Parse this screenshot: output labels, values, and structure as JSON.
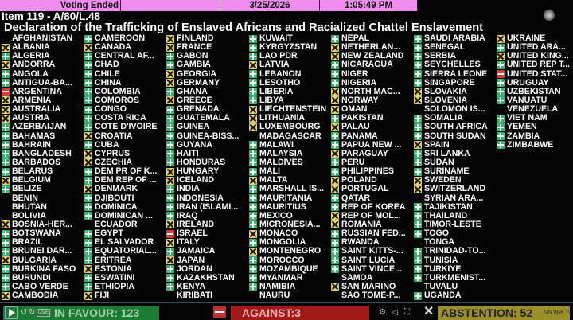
{
  "header": {
    "status": "Voting Ended",
    "blank": "",
    "date": "3/25/2026",
    "time": "1:05:49 PM"
  },
  "item": "Item 119 - A/80/L.48",
  "title": "Declaration of the Trafficking of Enslaved Africans and Racialized Chattel Enslavement",
  "vote_colors": {
    "yes": "#35b56e",
    "abstain": "#e6d25a",
    "no": "#dd3535"
  },
  "vote_icons": {
    "yes": "plus-icon",
    "abstain": "x-icon",
    "no": "minus-icon",
    "": "none"
  },
  "columns": [
    [
      [
        "AFGHANISTAN",
        ""
      ],
      [
        "ALBANIA",
        "abstain"
      ],
      [
        "ALGERIA",
        "yes"
      ],
      [
        "ANDORRA",
        "abstain"
      ],
      [
        "ANGOLA",
        "yes"
      ],
      [
        "ANTIGUA-BA...",
        "yes"
      ],
      [
        "ARGENTINA",
        "no"
      ],
      [
        "ARMENIA",
        "abstain"
      ],
      [
        "AUSTRALIA",
        "abstain"
      ],
      [
        "AUSTRIA",
        "abstain"
      ],
      [
        "AZERBAIJAN",
        "yes"
      ],
      [
        "BAHAMAS",
        "yes"
      ],
      [
        "BAHRAIN",
        "yes"
      ],
      [
        "BANGLADESH",
        "yes"
      ],
      [
        "BARBADOS",
        "yes"
      ],
      [
        "BELARUS",
        "yes"
      ],
      [
        "BELGIUM",
        "abstain"
      ],
      [
        "BELIZE",
        "yes"
      ],
      [
        "BENIN",
        ""
      ],
      [
        "BHUTAN",
        ""
      ],
      [
        "BOLIVIA",
        ""
      ],
      [
        "BOSNIA-HER...",
        "abstain"
      ],
      [
        "BOTSWANA",
        "yes"
      ],
      [
        "BRAZIL",
        "yes"
      ],
      [
        "BRUNEI DAR...",
        "yes"
      ],
      [
        "BULGARIA",
        "abstain"
      ],
      [
        "BURKINA FASO",
        "yes"
      ],
      [
        "BURUNDI",
        "yes"
      ],
      [
        "CABO VERDE",
        "yes"
      ],
      [
        "CAMBODIA",
        "abstain"
      ]
    ],
    [
      [
        "CAMEROON",
        "yes"
      ],
      [
        "CANADA",
        "abstain"
      ],
      [
        "CENTRAL AF...",
        "yes"
      ],
      [
        "CHAD",
        "yes"
      ],
      [
        "CHILE",
        "yes"
      ],
      [
        "CHINA",
        "yes"
      ],
      [
        "COLOMBIA",
        "yes"
      ],
      [
        "COMOROS",
        "yes"
      ],
      [
        "CONGO",
        "yes"
      ],
      [
        "COSTA RICA",
        "yes"
      ],
      [
        "COTE D'IVOIRE",
        "yes"
      ],
      [
        "CROATIA",
        "abstain"
      ],
      [
        "CUBA",
        "yes"
      ],
      [
        "CYPRUS",
        "abstain"
      ],
      [
        "CZECHIA",
        "abstain"
      ],
      [
        "DEM PR OF K...",
        "yes"
      ],
      [
        "DEM REP OF ...",
        "yes"
      ],
      [
        "DENMARK",
        "abstain"
      ],
      [
        "DJIBOUTI",
        "yes"
      ],
      [
        "DOMINICA",
        "yes"
      ],
      [
        "DOMINICAN ...",
        "yes"
      ],
      [
        "ECUADOR",
        ""
      ],
      [
        "EGYPT",
        "yes"
      ],
      [
        "EL SALVADOR",
        "yes"
      ],
      [
        "EQUATORIAL...",
        "yes"
      ],
      [
        "ERITREA",
        "yes"
      ],
      [
        "ESTONIA",
        "abstain"
      ],
      [
        "ESWATINI",
        "yes"
      ],
      [
        "ETHIOPIA",
        "yes"
      ],
      [
        "FIJI",
        "abstain"
      ]
    ],
    [
      [
        "FINLAND",
        "abstain"
      ],
      [
        "FRANCE",
        "abstain"
      ],
      [
        "GABON",
        "yes"
      ],
      [
        "GAMBIA",
        "yes"
      ],
      [
        "GEORGIA",
        "abstain"
      ],
      [
        "GERMANY",
        "abstain"
      ],
      [
        "GHANA",
        "yes"
      ],
      [
        "GREECE",
        "abstain"
      ],
      [
        "GRENADA",
        "yes"
      ],
      [
        "GUATEMALA",
        "yes"
      ],
      [
        "GUINEA",
        "yes"
      ],
      [
        "GUINEA-BISS...",
        "yes"
      ],
      [
        "GUYANA",
        "yes"
      ],
      [
        "HAITI",
        "yes"
      ],
      [
        "HONDURAS",
        "yes"
      ],
      [
        "HUNGARY",
        "abstain"
      ],
      [
        "ICELAND",
        "abstain"
      ],
      [
        "INDIA",
        "yes"
      ],
      [
        "INDONESIA",
        "yes"
      ],
      [
        "IRAN (ISLAMI...",
        "yes"
      ],
      [
        "IRAQ",
        "yes"
      ],
      [
        "IRELAND",
        "abstain"
      ],
      [
        "ISRAEL",
        "no"
      ],
      [
        "ITALY",
        "abstain"
      ],
      [
        "JAMAICA",
        "yes"
      ],
      [
        "JAPAN",
        "abstain"
      ],
      [
        "JORDAN",
        "yes"
      ],
      [
        "KAZAKHSTAN",
        "yes"
      ],
      [
        "KENYA",
        "yes"
      ],
      [
        "KIRIBATI",
        ""
      ]
    ],
    [
      [
        "KUWAIT",
        "yes"
      ],
      [
        "KYRGYZSTAN",
        "yes"
      ],
      [
        "LAO PDR",
        "yes"
      ],
      [
        "LATVIA",
        "abstain"
      ],
      [
        "LEBANON",
        "yes"
      ],
      [
        "LESOTHO",
        "yes"
      ],
      [
        "LIBERIA",
        "yes"
      ],
      [
        "LIBYA",
        "yes"
      ],
      [
        "LIECHTENSTEIN",
        "abstain"
      ],
      [
        "LITHUANIA",
        "abstain"
      ],
      [
        "LUXEMBOURG",
        "abstain"
      ],
      [
        "MADAGASCAR",
        ""
      ],
      [
        "MALAWI",
        "yes"
      ],
      [
        "MALAYSIA",
        "yes"
      ],
      [
        "MALDIVES",
        "yes"
      ],
      [
        "MALI",
        "yes"
      ],
      [
        "MALTA",
        "abstain"
      ],
      [
        "MARSHALL IS...",
        "yes"
      ],
      [
        "MAURITANIA",
        "yes"
      ],
      [
        "MAURITIUS",
        "yes"
      ],
      [
        "MEXICO",
        "yes"
      ],
      [
        "MICRONESIA...",
        "yes"
      ],
      [
        "MONACO",
        "abstain"
      ],
      [
        "MONGOLIA",
        "yes"
      ],
      [
        "MONTENEGRO",
        "abstain"
      ],
      [
        "MOROCCO",
        "yes"
      ],
      [
        "MOZAMBIQUE",
        "yes"
      ],
      [
        "MYANMAR",
        "yes"
      ],
      [
        "NAMIBIA",
        "yes"
      ],
      [
        "NAURU",
        ""
      ]
    ],
    [
      [
        "NEPAL",
        "yes"
      ],
      [
        "NETHERLAN...",
        "abstain"
      ],
      [
        "NEW ZEALAND",
        "abstain"
      ],
      [
        "NICARAGUA",
        "yes"
      ],
      [
        "NIGER",
        "yes"
      ],
      [
        "NIGERIA",
        "yes"
      ],
      [
        "NORTH MAC...",
        "abstain"
      ],
      [
        "NORWAY",
        "abstain"
      ],
      [
        "OMAN",
        "abstain"
      ],
      [
        "PAKISTAN",
        "yes"
      ],
      [
        "PALAU",
        "abstain"
      ],
      [
        "PANAMA",
        "yes"
      ],
      [
        "PAPUA NEW ...",
        "yes"
      ],
      [
        "PARAGUAY",
        "abstain"
      ],
      [
        "PERU",
        "yes"
      ],
      [
        "PHILIPPINES",
        "yes"
      ],
      [
        "POLAND",
        "abstain"
      ],
      [
        "PORTUGAL",
        "abstain"
      ],
      [
        "QATAR",
        "yes"
      ],
      [
        "REP OF KOREA",
        "yes"
      ],
      [
        "REP OF MOL...",
        "abstain"
      ],
      [
        "ROMANIA",
        "abstain"
      ],
      [
        "RUSSIAN FED...",
        "yes"
      ],
      [
        "RWANDA",
        "yes"
      ],
      [
        "SAINT KITTS-...",
        "yes"
      ],
      [
        "SAINT LUCIA",
        "yes"
      ],
      [
        "SAINT VINCE...",
        "yes"
      ],
      [
        "SAMOA",
        ""
      ],
      [
        "SAN MARINO",
        "abstain"
      ],
      [
        "SAO TOME-P...",
        ""
      ]
    ],
    [
      [
        "SAUDI ARABIA",
        "yes"
      ],
      [
        "SENEGAL",
        "yes"
      ],
      [
        "SERBIA",
        "yes"
      ],
      [
        "SEYCHELLES",
        "yes"
      ],
      [
        "SIERRA LEONE",
        "yes"
      ],
      [
        "SINGAPORE",
        "yes"
      ],
      [
        "SLOVAKIA",
        "abstain"
      ],
      [
        "SLOVENIA",
        "abstain"
      ],
      [
        "SOLOMON IS...",
        ""
      ],
      [
        "SOMALIA",
        "yes"
      ],
      [
        "SOUTH AFRICA",
        "yes"
      ],
      [
        "SOUTH SUDAN",
        "yes"
      ],
      [
        "SPAIN",
        "abstain"
      ],
      [
        "SRI LANKA",
        "yes"
      ],
      [
        "SUDAN",
        "yes"
      ],
      [
        "SURINAME",
        "yes"
      ],
      [
        "SWEDEN",
        "abstain"
      ],
      [
        "SWITZERLAND",
        "abstain"
      ],
      [
        "SYRIAN ARA...",
        ""
      ],
      [
        "TAJIKISTAN",
        "yes"
      ],
      [
        "THAILAND",
        "yes"
      ],
      [
        "TIMOR-LESTE",
        "yes"
      ],
      [
        "TOGO",
        "yes"
      ],
      [
        "TONGA",
        ""
      ],
      [
        "TRINIDAD-TO...",
        "yes"
      ],
      [
        "TUNISIA",
        "yes"
      ],
      [
        "TURKIYE",
        "yes"
      ],
      [
        "TURKMENIST...",
        "yes"
      ],
      [
        "TUVALU",
        ""
      ],
      [
        "UGANDA",
        "yes"
      ]
    ],
    [
      [
        "UKRAINE",
        "abstain"
      ],
      [
        "UNITED ARA...",
        "yes"
      ],
      [
        "UNITED KING...",
        "abstain"
      ],
      [
        "UNITED REP T...",
        "yes"
      ],
      [
        "UNITED STAT...",
        "no"
      ],
      [
        "URUGUAY",
        "yes"
      ],
      [
        "UZBEKISTAN",
        "yes"
      ],
      [
        "VANUATU",
        "yes"
      ],
      [
        "VENEZUELA",
        ""
      ],
      [
        "VIET NAM",
        "yes"
      ],
      [
        "YEMEN",
        "yes"
      ],
      [
        "ZAMBIA",
        "yes"
      ],
      [
        "ZIMBABWE",
        "yes"
      ]
    ]
  ],
  "totals": {
    "in_favour": "IN FAVOUR: 123",
    "against": "AGAINST:3",
    "abstention": "ABSTENTION: 52"
  },
  "player": {
    "live": "LIVE",
    "brand": "UN Web TV"
  }
}
